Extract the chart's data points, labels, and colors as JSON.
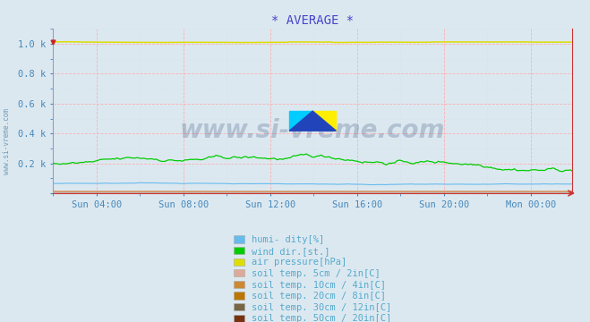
{
  "title": "* AVERAGE *",
  "title_color": "#4444cc",
  "bg_color": "#dce8f0",
  "plot_bg_color": "#dce8f0",
  "grid_color_major": "#ffaaaa",
  "grid_color_minor": "#ccddee",
  "tick_color": "#4488bb",
  "xticklabels": [
    "Sun 04:00",
    "Sun 08:00",
    "Sun 12:00",
    "Sun 16:00",
    "Sun 20:00",
    "Mon 00:00"
  ],
  "ytick_vals": [
    0.0,
    0.2,
    0.4,
    0.6,
    0.8,
    1.0
  ],
  "ytick_labels": [
    "",
    "0.2 k",
    "0.4 k",
    "0.6 k",
    "0.8 k",
    "1.0 k"
  ],
  "series": {
    "humidity": {
      "color": "#66bbee",
      "label": "humi- dity[%]"
    },
    "wind_dir": {
      "color": "#00cc00",
      "label": "wind dir.[st.]"
    },
    "air_pressure": {
      "color": "#dddd00",
      "label": "air pressure[hPa]"
    },
    "soil_5cm": {
      "color": "#ddaa99",
      "label": "soil temp. 5cm / 2in[C]"
    },
    "soil_10cm": {
      "color": "#cc8833",
      "label": "soil temp. 10cm / 4in[C]"
    },
    "soil_20cm": {
      "color": "#bb7700",
      "label": "soil temp. 20cm / 8in[C]"
    },
    "soil_30cm": {
      "color": "#776644",
      "label": "soil temp. 30cm / 12in[C]"
    },
    "soil_50cm": {
      "color": "#773311",
      "label": "soil temp. 50cm / 20in[C]"
    }
  },
  "legend_text_color": "#55aacc",
  "watermark_text": "www.si-vreme.com",
  "watermark_color": "#1a3a6a",
  "watermark_alpha": 0.22,
  "sidebar_text": "www.si-vreme.com",
  "sidebar_color": "#5588aa"
}
